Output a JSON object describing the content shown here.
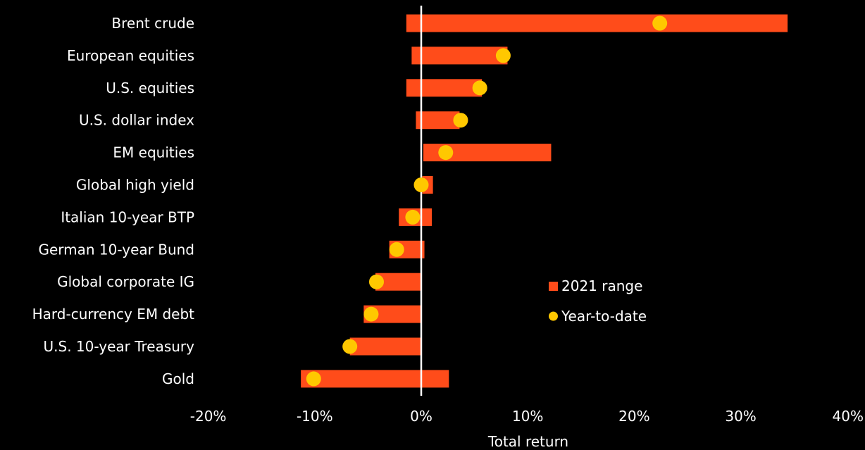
{
  "colors": {
    "background": "#000000",
    "range_bar": "#ff4c1a",
    "ytd_dot": "#ffc800",
    "zero_line": "#ffffff",
    "text": "#ffffff"
  },
  "chart_data": {
    "type": "bar",
    "orientation": "horizontal",
    "title": "",
    "xlabel": "Total return",
    "ylabel": "",
    "xlim": [
      -20,
      40
    ],
    "x_ticks": [
      -20,
      -10,
      0,
      10,
      20,
      30,
      40
    ],
    "x_tick_labels": [
      "-20%",
      "-10%",
      "0%",
      "10%",
      "20%",
      "30%",
      "40%"
    ],
    "grid": false,
    "legend_position": "center-right",
    "categories": [
      "Brent crude",
      "European equities",
      "U.S. equities",
      "U.S. dollar index",
      "EM equities",
      "Global high yield",
      "Italian 10-year BTP",
      "German 10-year Bund",
      "Global corporate IG",
      "Hard-currency EM debt",
      "U.S. 10-year Treasury",
      "Gold"
    ],
    "series": [
      {
        "name": "2021 range",
        "kind": "range",
        "values": [
          [
            -1.4,
            34.4
          ],
          [
            -0.9,
            8.1
          ],
          [
            -1.4,
            5.7
          ],
          [
            -0.5,
            3.6
          ],
          [
            0.2,
            12.2
          ],
          [
            0.1,
            1.1
          ],
          [
            -2.1,
            1.0
          ],
          [
            -3.0,
            0.3
          ],
          [
            -4.3,
            0.0
          ],
          [
            -5.4,
            0.0
          ],
          [
            -6.7,
            0.0
          ],
          [
            -11.3,
            2.6
          ]
        ]
      },
      {
        "name": "Year-to-date",
        "kind": "point",
        "values": [
          22.4,
          7.7,
          5.5,
          3.7,
          2.3,
          0.0,
          -0.8,
          -2.3,
          -4.2,
          -4.7,
          -6.7,
          -10.1
        ]
      }
    ]
  }
}
